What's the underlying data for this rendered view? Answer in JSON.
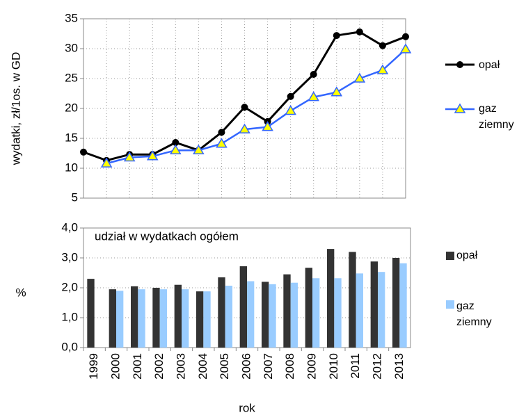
{
  "chart_data": [
    {
      "type": "line",
      "ylabel": "wydatki, zł/1os. w GD",
      "categories": [
        "1999",
        "2000",
        "2001",
        "2002",
        "2003",
        "2004",
        "2005",
        "2006",
        "2007",
        "2008",
        "2009",
        "2010",
        "2011",
        "2012",
        "2013"
      ],
      "series": [
        {
          "name": "opał",
          "color": "#000000",
          "marker": "circle",
          "marker_color": "#000000",
          "values": [
            12.7,
            11.3,
            12.3,
            12.3,
            14.3,
            13.0,
            16.0,
            20.2,
            17.8,
            22.0,
            25.7,
            32.2,
            32.8,
            30.5,
            32.0
          ]
        },
        {
          "name": "gaz ziemny",
          "color": "#3366ff",
          "marker": "triangle",
          "marker_color": "#ffff00",
          "values": [
            null,
            10.8,
            11.8,
            12.0,
            13.0,
            13.0,
            14.1,
            16.5,
            16.9,
            19.6,
            21.9,
            22.7,
            25.0,
            26.4,
            29.9
          ]
        }
      ],
      "ylim": [
        5,
        35
      ],
      "yticks": [
        5,
        10,
        15,
        20,
        25,
        30,
        35
      ],
      "grid": true
    },
    {
      "type": "bar",
      "annotation": "udział w wydatkach ogółem",
      "ylabel": "%",
      "xlabel": "rok",
      "categories": [
        "1999",
        "2000",
        "2001",
        "2002",
        "2003",
        "2004",
        "2005",
        "2006",
        "2007",
        "2008",
        "2009",
        "2010",
        "2011",
        "2012",
        "2013"
      ],
      "series": [
        {
          "name": "opał",
          "color": "#333333",
          "values": [
            2.3,
            1.95,
            2.05,
            2.0,
            2.1,
            1.88,
            2.35,
            2.72,
            2.2,
            2.45,
            2.67,
            3.3,
            3.2,
            2.88,
            3.0
          ]
        },
        {
          "name": "gaz ziemny",
          "color": "#99ccff",
          "values": [
            null,
            1.9,
            1.95,
            1.95,
            1.95,
            1.88,
            2.07,
            2.22,
            2.12,
            2.17,
            2.32,
            2.32,
            2.48,
            2.53,
            2.82
          ]
        }
      ],
      "ylim": [
        0,
        4
      ],
      "yticks": [
        {
          "value": 0,
          "label": "0,0"
        },
        {
          "value": 1,
          "label": "1,0"
        },
        {
          "value": 2,
          "label": "2,0"
        },
        {
          "value": 3,
          "label": "3,0"
        },
        {
          "value": 4,
          "label": "4,0"
        }
      ],
      "grid": true
    }
  ]
}
